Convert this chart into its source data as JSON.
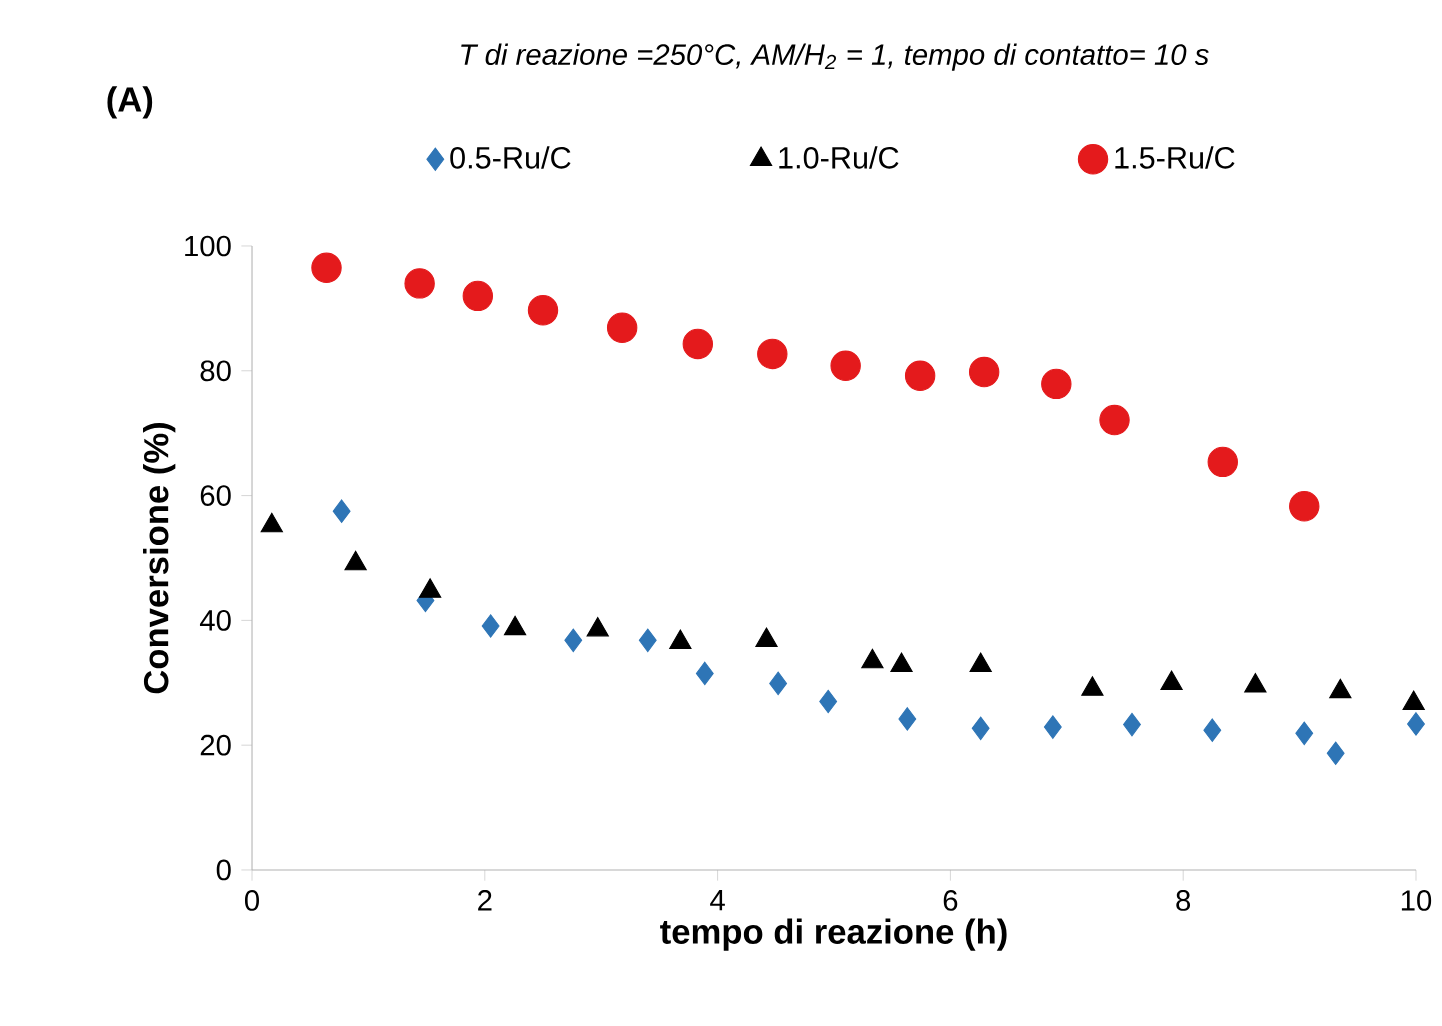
{
  "chart_data": {
    "type": "scatter",
    "title": "T di reazione =250°C, AM/H$_{2}$ = 1, tempo di contatto= 10 s",
    "annotations": [
      "(A)"
    ],
    "xlabel": "tempo di reazione (h)",
    "ylabel": "Conversione (%)",
    "xlim": [
      0,
      10
    ],
    "ylim": [
      0,
      100
    ],
    "xticks": [
      0,
      2,
      4,
      6,
      8,
      10
    ],
    "yticks": [
      0,
      20,
      40,
      60,
      80,
      100
    ],
    "legend": "top",
    "series": [
      {
        "name": "0.5-Ru/C",
        "color": "#2e75b6",
        "marker": "diamond",
        "x": [
          0.77,
          1.49,
          2.05,
          2.76,
          3.4,
          3.89,
          4.52,
          4.95,
          5.63,
          6.26,
          6.88,
          7.56,
          8.25,
          9.04,
          9.31,
          10
        ],
        "values": [
          57.5,
          43.2,
          39.1,
          36.8,
          36.8,
          31.5,
          29.9,
          27,
          24.2,
          22.7,
          22.9,
          23.3,
          22.4,
          21.9,
          18.7,
          23.4
        ]
      },
      {
        "name": "1.0-Ru/C",
        "color": "#000000",
        "marker": "triangle",
        "x": [
          0.17,
          0.89,
          1.53,
          2.26,
          2.97,
          3.68,
          4.42,
          5.33,
          5.58,
          6.26,
          7.22,
          7.9,
          8.62,
          9.35,
          9.98
        ],
        "values": [
          55.2,
          49.1,
          44.7,
          38.7,
          38.5,
          36.5,
          36.8,
          33.4,
          32.8,
          32.8,
          29,
          29.9,
          29.5,
          28.6,
          26.7
        ]
      },
      {
        "name": "1.5-Ru/C",
        "color": "#e41a1c",
        "marker": "circle",
        "x": [
          0.64,
          1.44,
          1.94,
          2.5,
          3.18,
          3.83,
          4.47,
          5.1,
          5.74,
          6.29,
          6.91,
          7.41,
          8.34,
          9.04
        ],
        "values": [
          96.5,
          94,
          92,
          89.7,
          86.9,
          84.3,
          82.7,
          80.8,
          79.2,
          79.8,
          77.9,
          72.1,
          65.4,
          58.3
        ]
      }
    ]
  }
}
